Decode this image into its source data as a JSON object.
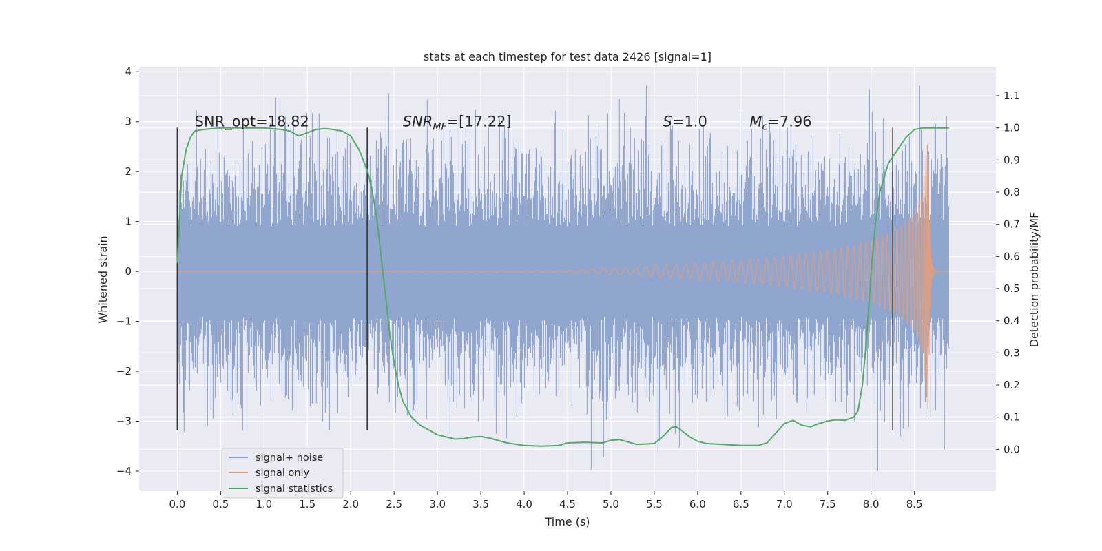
{
  "chart_data": {
    "type": "line",
    "title": "stats at each timestep for test data 2426 [signal=1]",
    "xlabel": "Time (s)",
    "ylabel_left": "Whitened strain",
    "ylabel_right": "Detection probability/MF",
    "xlim": [
      -0.44,
      9.44
    ],
    "ylim_left": [
      -4.4,
      4.1
    ],
    "ylim_right": [
      -0.13,
      1.19
    ],
    "x_ticks": [
      "0.0",
      "0.5",
      "1.0",
      "1.5",
      "2.0",
      "2.5",
      "3.0",
      "3.5",
      "4.0",
      "4.5",
      "5.0",
      "5.5",
      "6.0",
      "6.5",
      "7.0",
      "7.5",
      "8.0",
      "8.5"
    ],
    "y_left_ticks": [
      "4",
      "3",
      "2",
      "1",
      "0",
      "−1",
      "−2",
      "−3",
      "−4"
    ],
    "y_right_ticks": [
      "0.0",
      "0.1",
      "0.2",
      "0.3",
      "0.4",
      "0.5",
      "0.6",
      "0.7",
      "0.8",
      "0.9",
      "1.0",
      "1.1"
    ],
    "grid": true,
    "legend_position": "lower-left",
    "colors": {
      "noise": "#8ca2cc",
      "signal": "#dd9e82",
      "stats": "#55a868",
      "vline": "#333333",
      "background": "#eaeaf2"
    },
    "series": [
      {
        "name": "signal+ noise",
        "axis": "left",
        "description_range": "Dense whitened strain from t=0 to t≈8.9 s, amplitude mostly within ±2, extremes from about −4.0 to +3.7",
        "x_range": [
          0.0,
          8.9
        ],
        "typical_amplitude": 1.7,
        "extremes": [
          -4.0,
          3.72
        ]
      },
      {
        "name": "signal only",
        "axis": "left",
        "chirp": {
          "start": 0.0,
          "merger": 8.66,
          "end": 8.9,
          "peak_amplitude": 2.9,
          "envelope": [
            [
              4.5,
              0.03
            ],
            [
              5.0,
              0.07
            ],
            [
              5.5,
              0.11
            ],
            [
              6.0,
              0.16
            ],
            [
              6.5,
              0.22
            ],
            [
              7.0,
              0.3
            ],
            [
              7.5,
              0.42
            ],
            [
              8.0,
              0.62
            ],
            [
              8.3,
              0.85
            ],
            [
              8.5,
              1.2
            ],
            [
              8.6,
              1.7
            ],
            [
              8.66,
              2.9
            ]
          ]
        }
      },
      {
        "name": "signal statistics",
        "axis": "right",
        "x": [
          0.0,
          0.05,
          0.1,
          0.15,
          0.2,
          0.3,
          0.5,
          0.8,
          1.0,
          1.2,
          1.3,
          1.4,
          1.5,
          1.6,
          1.7,
          1.8,
          1.9,
          2.0,
          2.1,
          2.2,
          2.25,
          2.3,
          2.35,
          2.4,
          2.45,
          2.5,
          2.55,
          2.6,
          2.7,
          2.8,
          3.0,
          3.2,
          3.3,
          3.4,
          3.5,
          3.6,
          3.8,
          4.0,
          4.2,
          4.4,
          4.5,
          4.7,
          4.9,
          5.0,
          5.1,
          5.3,
          5.5,
          5.6,
          5.7,
          5.75,
          5.8,
          5.9,
          6.0,
          6.1,
          6.3,
          6.5,
          6.7,
          6.8,
          6.9,
          7.0,
          7.1,
          7.2,
          7.3,
          7.4,
          7.5,
          7.6,
          7.7,
          7.8,
          7.85,
          7.9,
          7.95,
          8.0,
          8.05,
          8.1,
          8.2,
          8.3,
          8.4,
          8.5,
          8.6,
          8.7,
          8.8,
          8.9
        ],
        "y": [
          0.58,
          0.85,
          0.93,
          0.97,
          0.99,
          0.995,
          1.0,
          1.0,
          1.0,
          0.995,
          0.99,
          0.975,
          0.985,
          0.995,
          0.998,
          0.995,
          0.99,
          0.975,
          0.93,
          0.86,
          0.8,
          0.72,
          0.6,
          0.48,
          0.36,
          0.27,
          0.2,
          0.15,
          0.1,
          0.075,
          0.045,
          0.032,
          0.033,
          0.038,
          0.04,
          0.035,
          0.02,
          0.012,
          0.01,
          0.012,
          0.02,
          0.022,
          0.02,
          0.028,
          0.03,
          0.015,
          0.018,
          0.04,
          0.068,
          0.07,
          0.062,
          0.04,
          0.025,
          0.018,
          0.015,
          0.012,
          0.012,
          0.02,
          0.05,
          0.08,
          0.09,
          0.075,
          0.07,
          0.08,
          0.088,
          0.092,
          0.09,
          0.1,
          0.12,
          0.2,
          0.35,
          0.55,
          0.7,
          0.8,
          0.89,
          0.93,
          0.97,
          0.995,
          1.0,
          1.0,
          1.0,
          1.0
        ]
      }
    ],
    "vertical_lines": [
      0.0,
      2.19,
      8.25
    ],
    "vertical_line_range_left": [
      -3.18,
      2.88
    ],
    "annotations": [
      {
        "x": 0.2,
        "text": "SNR_opt=18.82"
      },
      {
        "x": 2.6,
        "text": "SNR_MF=[17.22]"
      },
      {
        "x": 5.6,
        "text": "S=1.0"
      },
      {
        "x": 6.6,
        "text": "M_c=7.96"
      }
    ],
    "annotation_y_left": 3.0
  },
  "annotation_parts": {
    "snr_opt": "SNR_opt=18.82",
    "snr_mf_sym": "SNR",
    "snr_mf_sub": "MF",
    "snr_mf_val": "=[17.22]",
    "s_sym": "S",
    "s_val": "=1.0",
    "mc_sym": "M",
    "mc_sub": "c",
    "mc_val": "=7.96"
  },
  "legend": [
    {
      "label": "signal+ noise",
      "color": "#8ca2cc"
    },
    {
      "label": "signal only",
      "color": "#dd9e82"
    },
    {
      "label": "signal statistics",
      "color": "#55a868"
    }
  ]
}
